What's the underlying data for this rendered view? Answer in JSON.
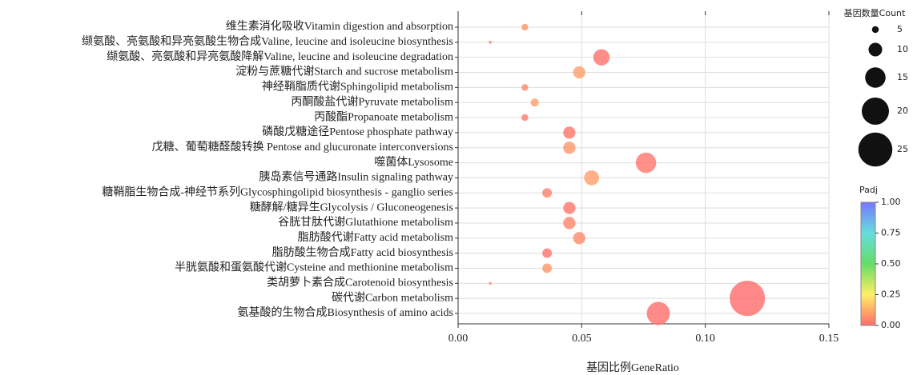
{
  "chart_data": {
    "type": "bubble",
    "x_label": "基因比例GeneRatio",
    "categories": [
      "维生素消化吸收Vitamin digestion and absorption",
      "缬氨酸、亮氨酸和异亮氨酸生物合成Valine, leucine and isoleucine biosynthesis",
      "缬氨酸、亮氨酸和异亮氨酸降解Valine, leucine and isoleucine degradation",
      "淀粉与蔗糖代谢Starch and sucrose metabolism",
      "神经鞘脂质代谢Sphingolipid metabolism",
      "丙酮酸盐代谢Pyruvate metabolism",
      "丙酸酯Propanoate metabolism",
      "磷酸戊糖途径Pentose phosphate pathway",
      "戊糖、葡萄糖醛酸转换 Pentose and glucuronate interconversions",
      "噬菌体Lysosome",
      "胰岛素信号通路Insulin signaling pathway",
      "糖鞘脂生物合成-神经节系列Glycosphingolipid biosynthesis - ganglio series",
      "糖酵解/糖异生Glycolysis / Gluconeogenesis",
      "谷胱甘肽代谢Glutathione metabolism",
      "脂肪酸代谢Fatty acid metabolism",
      "脂肪酸生物合成Fatty acid biosynthesis",
      "半胱氨酸和蛋氨酸代谢Cysteine and methionine metabolism",
      "类胡萝卜素合成Carotenoid biosynthesis",
      "碳代谢Carbon metabolism",
      "氨基酸的生物合成Biosynthesis of amino acids"
    ],
    "values": [
      0.027,
      0.013,
      0.058,
      0.049,
      0.027,
      0.031,
      0.027,
      0.045,
      0.045,
      0.076,
      0.054,
      0.036,
      0.045,
      0.045,
      0.049,
      0.036,
      0.036,
      0.013,
      0.117,
      0.081
    ],
    "sizes": [
      5,
      2,
      12,
      9,
      5,
      6,
      5,
      9,
      9,
      15,
      11,
      7,
      9,
      9,
      9,
      7,
      7,
      2,
      26,
      17
    ],
    "padj": [
      0.08,
      0.01,
      0.01,
      0.1,
      0.06,
      0.1,
      0.03,
      0.02,
      0.08,
      0.02,
      0.1,
      0.04,
      0.02,
      0.05,
      0.06,
      0.01,
      0.08,
      0.05,
      0.001,
      0.005
    ],
    "xlim": [
      0,
      0.15
    ],
    "xticks": [
      {
        "value": 0,
        "label": "0.00"
      },
      {
        "value": 0.05,
        "label": "0.05"
      },
      {
        "value": 0.1,
        "label": "0.10"
      },
      {
        "value": 0.15,
        "label": "0.15"
      }
    ],
    "grid": true,
    "size_legend": {
      "title": "基因数量Count",
      "values": [
        5,
        10,
        15,
        20,
        25
      ]
    },
    "colorbar": {
      "title": "Padj",
      "lim": [
        0,
        1
      ],
      "ticks": [
        {
          "value": 0,
          "label": "0.00"
        },
        {
          "value": 0.25,
          "label": "0.25"
        },
        {
          "value": 0.5,
          "label": "0.50"
        },
        {
          "value": 0.75,
          "label": "0.75"
        },
        {
          "value": 1,
          "label": "1.00"
        }
      ]
    }
  }
}
